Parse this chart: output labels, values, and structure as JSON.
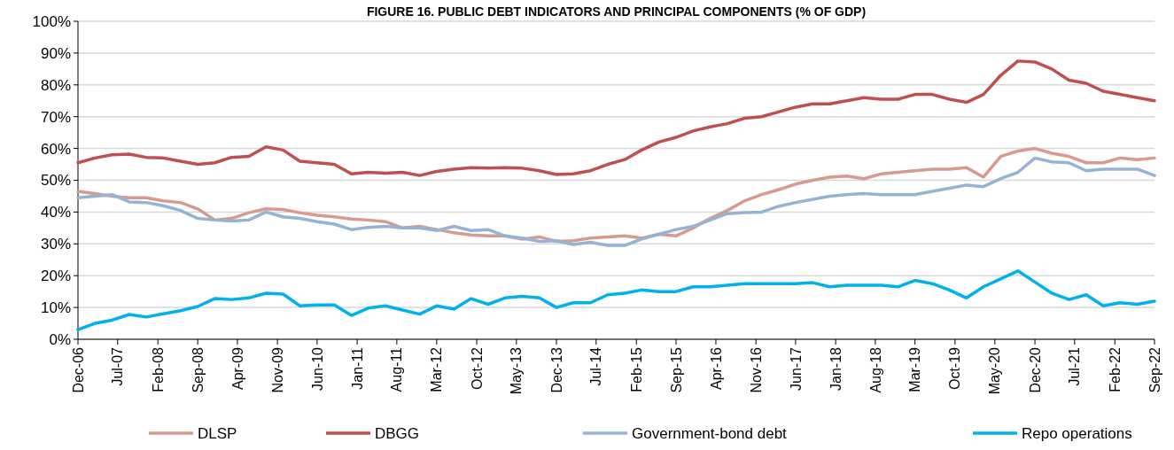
{
  "chart_data": {
    "type": "line",
    "title": "FIGURE 16. PUBLIC DEBT INDICATORS AND PRINCIPAL COMPONENTS (% OF GDP)",
    "x": [
      "2006-12",
      "2007-03",
      "2007-06",
      "2007-09",
      "2007-12",
      "2008-03",
      "2008-06",
      "2008-09",
      "2008-12",
      "2009-03",
      "2009-06",
      "2009-09",
      "2009-12",
      "2010-03",
      "2010-06",
      "2010-09",
      "2010-12",
      "2011-03",
      "2011-06",
      "2011-09",
      "2011-12",
      "2012-03",
      "2012-06",
      "2012-09",
      "2012-12",
      "2013-03",
      "2013-06",
      "2013-09",
      "2013-12",
      "2014-03",
      "2014-06",
      "2014-09",
      "2014-12",
      "2015-03",
      "2015-06",
      "2015-09",
      "2015-12",
      "2016-03",
      "2016-06",
      "2016-09",
      "2016-12",
      "2017-03",
      "2017-06",
      "2017-09",
      "2017-12",
      "2018-03",
      "2018-06",
      "2018-09",
      "2018-12",
      "2019-03",
      "2019-06",
      "2019-09",
      "2019-12",
      "2020-03",
      "2020-06",
      "2020-09",
      "2020-12",
      "2021-03",
      "2021-06",
      "2021-09",
      "2021-12",
      "2022-03",
      "2022-06",
      "2022-09"
    ],
    "series": [
      {
        "name": "DLSP",
        "color": "#d99a8e",
        "values": [
          46.5,
          45.8,
          45,
          44.5,
          44.5,
          43.5,
          43,
          41,
          37.5,
          38,
          39.8,
          41,
          40.8,
          39.8,
          39,
          38.5,
          37.8,
          37.5,
          37,
          35,
          35.5,
          34.5,
          33.5,
          32.8,
          32.5,
          32.5,
          31.5,
          32.2,
          30.8,
          31,
          31.8,
          32.2,
          32.5,
          31.8,
          33,
          32.5,
          35,
          38,
          40.5,
          43.5,
          45.5,
          47,
          48.8,
          50,
          51,
          51.3,
          50.5,
          52,
          52.5,
          53,
          53.5,
          53.5,
          54,
          51,
          57.5,
          59.2,
          60,
          58.5,
          57.5,
          55.5,
          55.5,
          57,
          56.5,
          57
        ]
      },
      {
        "name": "DBGG",
        "color": "#c0504d",
        "values": [
          55.5,
          57,
          58,
          58.2,
          57.2,
          57,
          56,
          55,
          55.5,
          57.2,
          57.5,
          60.5,
          59.5,
          56,
          55.5,
          55,
          52,
          52.5,
          52.2,
          52.5,
          51.5,
          52.8,
          53.5,
          54,
          53.8,
          54,
          53.8,
          53,
          51.8,
          52,
          53,
          55,
          56.5,
          59.5,
          62,
          63.5,
          65.5,
          66.8,
          67.8,
          69.5,
          70,
          71.5,
          73,
          74,
          74,
          75,
          76,
          75.5,
          75.5,
          77,
          77,
          75.5,
          74.5,
          77,
          83,
          87.5,
          87.2,
          85,
          81.5,
          80.5,
          78,
          77,
          76,
          75
        ]
      },
      {
        "name": "Government-bond debt",
        "color": "#95b3d7",
        "values": [
          44.5,
          45,
          45.5,
          43.2,
          43,
          42,
          40.5,
          38,
          37.5,
          37.2,
          37.5,
          40,
          38.5,
          38,
          37,
          36.2,
          34.5,
          35.2,
          35.5,
          35,
          35,
          34.2,
          35.5,
          34.2,
          34.5,
          32.5,
          31.8,
          30.8,
          31,
          29.8,
          30.5,
          29.5,
          29.5,
          31.5,
          33,
          34.5,
          35.5,
          37.5,
          39.5,
          39.8,
          40,
          41.8,
          43,
          44,
          45,
          45.5,
          45.8,
          45.5,
          45.5,
          45.5,
          46.5,
          47.5,
          48.5,
          48,
          50.5,
          52.5,
          57,
          55.8,
          55.5,
          53,
          53.5,
          53.5,
          53.5,
          51.5
        ]
      },
      {
        "name": "Repo operations",
        "color": "#00b0f0",
        "values": [
          3,
          5,
          6,
          7.8,
          7,
          8,
          9,
          10.3,
          12.8,
          12.5,
          13,
          14.5,
          14.2,
          10.5,
          10.8,
          10.8,
          7.5,
          9.8,
          10.5,
          9.2,
          7.9,
          10.5,
          9.5,
          12.8,
          11,
          13,
          13.5,
          13,
          10,
          11.5,
          11.5,
          14,
          14.5,
          15.5,
          15,
          15,
          16.5,
          16.5,
          17,
          17.5,
          17.5,
          17.5,
          17.5,
          17.8,
          16.5,
          17,
          17,
          17,
          16.5,
          18.5,
          17.5,
          15.5,
          13,
          16.5,
          19,
          21.5,
          18,
          14.5,
          12.5,
          14,
          10.5,
          11.5,
          11,
          12
        ]
      }
    ],
    "xlim": [
      "2006-12",
      "2022-09"
    ],
    "xticks": [
      {
        "value": "2006-12",
        "label": "Dec-06"
      },
      {
        "value": "2007-07",
        "label": "Jul-07"
      },
      {
        "value": "2008-02",
        "label": "Feb-08"
      },
      {
        "value": "2008-09",
        "label": "Sep-08"
      },
      {
        "value": "2009-04",
        "label": "Apr-09"
      },
      {
        "value": "2009-11",
        "label": "Nov-09"
      },
      {
        "value": "2010-06",
        "label": "Jun-10"
      },
      {
        "value": "2011-01",
        "label": "Jan-11"
      },
      {
        "value": "2011-08",
        "label": "Aug-11"
      },
      {
        "value": "2012-03",
        "label": "Mar-12"
      },
      {
        "value": "2012-10",
        "label": "Oct-12"
      },
      {
        "value": "2013-05",
        "label": "May-13"
      },
      {
        "value": "2013-12",
        "label": "Dec-13"
      },
      {
        "value": "2014-07",
        "label": "Jul-14"
      },
      {
        "value": "2015-02",
        "label": "Feb-15"
      },
      {
        "value": "2015-09",
        "label": "Sep-15"
      },
      {
        "value": "2016-04",
        "label": "Apr-16"
      },
      {
        "value": "2016-11",
        "label": "Nov-16"
      },
      {
        "value": "2017-06",
        "label": "Jun-17"
      },
      {
        "value": "2018-01",
        "label": "Jan-18"
      },
      {
        "value": "2018-08",
        "label": "Aug-18"
      },
      {
        "value": "2019-03",
        "label": "Mar-19"
      },
      {
        "value": "2019-10",
        "label": "Oct-19"
      },
      {
        "value": "2020-05",
        "label": "May-20"
      },
      {
        "value": "2020-12",
        "label": "Dec-20"
      },
      {
        "value": "2021-07",
        "label": "Jul-21"
      },
      {
        "value": "2022-02",
        "label": "Feb-22"
      },
      {
        "value": "2022-09",
        "label": "Sep-22"
      }
    ],
    "ylim": [
      0,
      100
    ],
    "yticks": [
      {
        "value": 0,
        "label": "0%"
      },
      {
        "value": 10,
        "label": "10%"
      },
      {
        "value": 20,
        "label": "20%"
      },
      {
        "value": 30,
        "label": "30%"
      },
      {
        "value": 40,
        "label": "40%"
      },
      {
        "value": 50,
        "label": "50%"
      },
      {
        "value": 60,
        "label": "60%"
      },
      {
        "value": 70,
        "label": "70%"
      },
      {
        "value": 80,
        "label": "80%"
      },
      {
        "value": 90,
        "label": "90%"
      },
      {
        "value": 100,
        "label": "100%"
      }
    ],
    "grid": "y",
    "legend": "bottom",
    "line_style": "solid"
  }
}
